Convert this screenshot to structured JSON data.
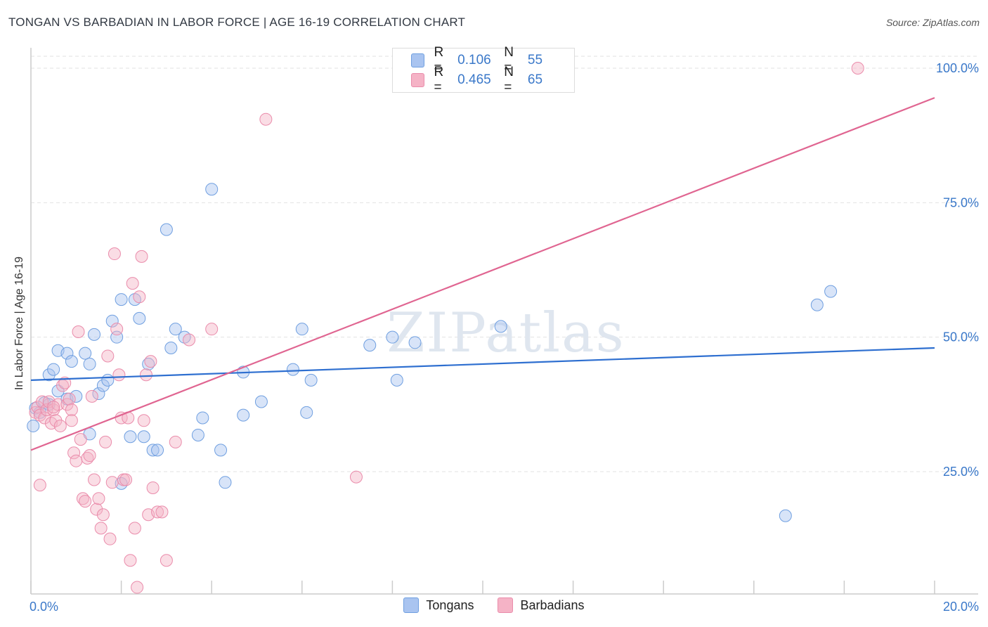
{
  "title": "TONGAN VS BARBADIAN IN LABOR FORCE | AGE 16-19 CORRELATION CHART",
  "source": "Source: ZipAtlas.com",
  "watermark": "ZIPatlas",
  "legend": {
    "rows": [
      {
        "r_label": "R =",
        "r_value": "0.106",
        "n_label": "N =",
        "n_value": "55",
        "color": "#a9c4f0"
      },
      {
        "r_label": "R =",
        "r_value": "0.465",
        "n_label": "N =",
        "n_value": "65",
        "color": "#f5b3c6"
      }
    ]
  },
  "bottom_legend": [
    {
      "label": "Tongans",
      "color": "#a9c4f0"
    },
    {
      "label": "Barbadians",
      "color": "#f5b3c6"
    }
  ],
  "chart_data": {
    "type": "scatter",
    "title": "TONGAN VS BARBADIAN IN LABOR FORCE | AGE 16-19 CORRELATION CHART",
    "xlabel": "",
    "ylabel": "In Labor Force | Age 16-19",
    "xlim": [
      0,
      20
    ],
    "ylim": [
      0,
      100
    ],
    "x_tick_labels": [
      "0.0%",
      "20.0%"
    ],
    "y_ticks": [
      25,
      50,
      75,
      100
    ],
    "y_tick_labels": [
      "25.0%",
      "50.0%",
      "75.0%",
      "100.0%"
    ],
    "grid": true,
    "series": [
      {
        "name": "Tongans",
        "color": "#a9c4f0",
        "stroke": "#6f9fe0",
        "line_color": "#2e6fd0",
        "trend": {
          "x0": 0,
          "y0": 42.0,
          "x1": 20,
          "y1": 48.0
        },
        "points": [
          [
            0.1,
            36.8
          ],
          [
            0.2,
            36.0
          ],
          [
            0.3,
            37.8
          ],
          [
            0.4,
            37.5
          ],
          [
            0.4,
            43.0
          ],
          [
            0.5,
            44.0
          ],
          [
            0.6,
            47.5
          ],
          [
            0.6,
            40.0
          ],
          [
            0.8,
            47.0
          ],
          [
            0.8,
            38.5
          ],
          [
            0.9,
            45.5
          ],
          [
            1.0,
            39.0
          ],
          [
            1.2,
            47.0
          ],
          [
            1.3,
            45.0
          ],
          [
            1.3,
            32.0
          ],
          [
            1.4,
            50.5
          ],
          [
            1.5,
            39.5
          ],
          [
            1.6,
            41.0
          ],
          [
            1.7,
            42.0
          ],
          [
            1.8,
            53.0
          ],
          [
            1.9,
            50.0
          ],
          [
            2.0,
            22.8
          ],
          [
            2.0,
            57.0
          ],
          [
            2.2,
            31.5
          ],
          [
            2.3,
            57.0
          ],
          [
            2.4,
            53.5
          ],
          [
            2.5,
            31.5
          ],
          [
            2.6,
            45.0
          ],
          [
            2.7,
            29.0
          ],
          [
            2.8,
            29.0
          ],
          [
            3.0,
            70.0
          ],
          [
            3.1,
            48.0
          ],
          [
            3.2,
            51.5
          ],
          [
            3.4,
            50.0
          ],
          [
            3.7,
            31.8
          ],
          [
            3.8,
            35.0
          ],
          [
            4.0,
            77.5
          ],
          [
            4.2,
            29.0
          ],
          [
            4.3,
            23.0
          ],
          [
            4.7,
            35.5
          ],
          [
            4.7,
            43.5
          ],
          [
            5.1,
            38.0
          ],
          [
            5.8,
            44.0
          ],
          [
            6.0,
            51.5
          ],
          [
            6.1,
            36.0
          ],
          [
            6.2,
            42.0
          ],
          [
            7.5,
            48.5
          ],
          [
            8.0,
            50.0
          ],
          [
            8.1,
            42.0
          ],
          [
            8.5,
            49.0
          ],
          [
            10.4,
            52.0
          ],
          [
            16.7,
            16.8
          ],
          [
            17.4,
            56.0
          ],
          [
            17.7,
            58.5
          ],
          [
            0.05,
            33.5
          ]
        ]
      },
      {
        "name": "Barbadians",
        "color": "#f5b3c6",
        "stroke": "#ea8cab",
        "line_color": "#e06591",
        "trend": {
          "x0": 0,
          "y0": 29.0,
          "x1": 20,
          "y1": 94.5
        },
        "points": [
          [
            0.1,
            36.0
          ],
          [
            0.15,
            37.0
          ],
          [
            0.2,
            35.5
          ],
          [
            0.25,
            38.0
          ],
          [
            0.3,
            35.0
          ],
          [
            0.35,
            36.5
          ],
          [
            0.4,
            38.0
          ],
          [
            0.45,
            34.0
          ],
          [
            0.5,
            36.5
          ],
          [
            0.55,
            34.5
          ],
          [
            0.6,
            37.5
          ],
          [
            0.65,
            33.5
          ],
          [
            0.7,
            41.0
          ],
          [
            0.75,
            41.5
          ],
          [
            0.8,
            37.5
          ],
          [
            0.85,
            38.5
          ],
          [
            0.9,
            36.5
          ],
          [
            0.95,
            28.5
          ],
          [
            1.0,
            27.0
          ],
          [
            1.05,
            51.0
          ],
          [
            1.1,
            31.0
          ],
          [
            1.15,
            20.0
          ],
          [
            1.2,
            19.5
          ],
          [
            1.25,
            27.5
          ],
          [
            1.3,
            28.0
          ],
          [
            1.35,
            39.0
          ],
          [
            1.4,
            23.5
          ],
          [
            1.45,
            18.0
          ],
          [
            1.5,
            20.0
          ],
          [
            1.55,
            14.5
          ],
          [
            1.6,
            17.0
          ],
          [
            1.65,
            30.5
          ],
          [
            1.7,
            46.5
          ],
          [
            1.75,
            12.5
          ],
          [
            1.8,
            23.0
          ],
          [
            1.85,
            65.5
          ],
          [
            1.9,
            51.5
          ],
          [
            1.95,
            43.0
          ],
          [
            2.0,
            35.0
          ],
          [
            2.05,
            23.5
          ],
          [
            2.1,
            23.5
          ],
          [
            2.15,
            35.0
          ],
          [
            2.2,
            8.5
          ],
          [
            2.25,
            60.0
          ],
          [
            2.3,
            14.5
          ],
          [
            2.35,
            3.5
          ],
          [
            2.4,
            57.5
          ],
          [
            2.45,
            65.0
          ],
          [
            2.5,
            34.5
          ],
          [
            2.55,
            43.0
          ],
          [
            2.6,
            17.0
          ],
          [
            2.65,
            45.5
          ],
          [
            2.7,
            22.0
          ],
          [
            2.8,
            17.5
          ],
          [
            2.9,
            17.5
          ],
          [
            3.0,
            8.5
          ],
          [
            3.2,
            30.5
          ],
          [
            3.5,
            49.5
          ],
          [
            4.0,
            51.5
          ],
          [
            5.2,
            90.5
          ],
          [
            7.2,
            24.0
          ],
          [
            18.3,
            100.0
          ],
          [
            0.2,
            22.5
          ],
          [
            0.5,
            37.0
          ],
          [
            0.9,
            34.5
          ]
        ]
      }
    ]
  }
}
